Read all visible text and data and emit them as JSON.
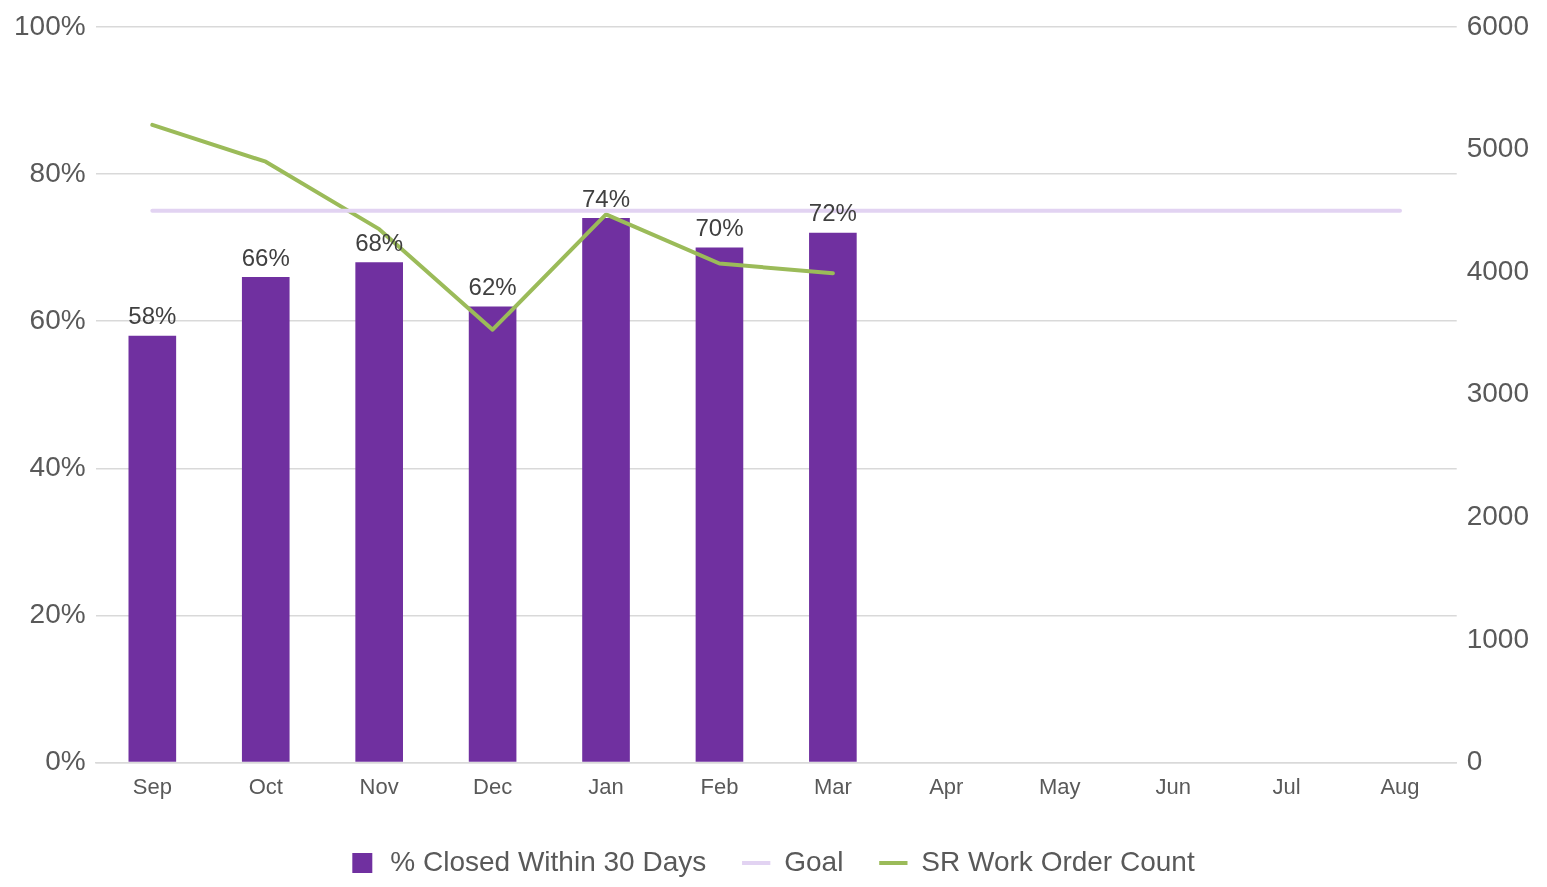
{
  "chart_data": {
    "type": "bar",
    "categories": [
      "Sep",
      "Oct",
      "Nov",
      "Dec",
      "Jan",
      "Feb",
      "Mar",
      "Apr",
      "May",
      "Jun",
      "Jul",
      "Aug"
    ],
    "series": [
      {
        "name": "% Closed Within 30 Days",
        "color": "#7030a0",
        "values": [
          58,
          66,
          68,
          62,
          74,
          70,
          72,
          null,
          null,
          null,
          null,
          null
        ],
        "value_labels": [
          "58%",
          "66%",
          "68%",
          "62%",
          "74%",
          "70%",
          "72%",
          null,
          null,
          null,
          null,
          null
        ]
      },
      {
        "name": "Goal",
        "type": "line",
        "color": "#e2d3f2",
        "values": [
          75,
          75,
          75,
          75,
          75,
          75,
          75,
          75,
          75,
          75,
          75,
          75
        ]
      },
      {
        "name": "SR Work Order Count",
        "type": "line",
        "axis": "y2",
        "color": "#9bbb59",
        "values": [
          5200,
          4900,
          4350,
          3530,
          4470,
          4070,
          3990,
          null,
          null,
          null,
          null,
          null
        ]
      }
    ],
    "ylim": [
      0,
      100
    ],
    "yticks": [
      {
        "value": 0,
        "label": "0%"
      },
      {
        "value": 20,
        "label": "20%"
      },
      {
        "value": 40,
        "label": "40%"
      },
      {
        "value": 60,
        "label": "60%"
      },
      {
        "value": 80,
        "label": "80%"
      },
      {
        "value": 100,
        "label": "100%"
      }
    ],
    "y2lim": [
      0,
      6000
    ],
    "y2ticks": [
      0,
      1000,
      2000,
      3000,
      4000,
      5000,
      6000
    ],
    "grid": "y",
    "legend": "bottom",
    "marker": "none"
  }
}
